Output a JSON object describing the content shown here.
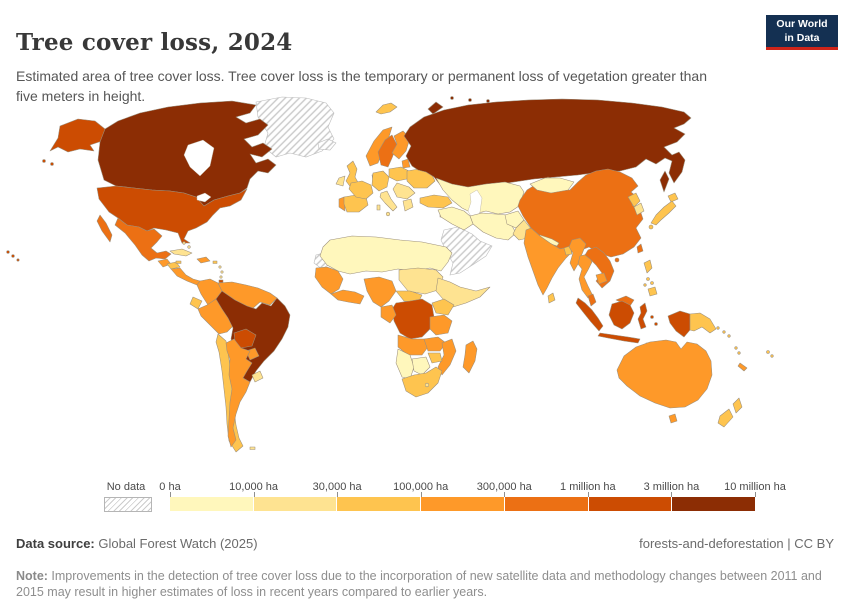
{
  "header": {
    "title": "Tree cover loss, 2024",
    "subtitle": "Estimated area of tree cover loss. Tree cover loss is the temporary or permanent loss of vegetation greater than five meters in height.",
    "logo_line1": "Our World",
    "logo_line2": "in Data",
    "logo_bg": "#143052",
    "logo_accent": "#CF2419"
  },
  "legend": {
    "nodata_label": "No data",
    "boundary_labels": [
      "0 ha",
      "10,000 ha",
      "30,000 ha",
      "100,000 ha",
      "300,000 ha",
      "1 million ha",
      "3 million ha",
      "10 million ha"
    ],
    "bin_colors": [
      "#FFF7BC",
      "#FEE391",
      "#FEC44F",
      "#FE9929",
      "#EC7014",
      "#CC4C02",
      "#8C2D04"
    ]
  },
  "footer": {
    "source_label": "Data source:",
    "source_value": " Global Forest Watch (2025)",
    "attribution": "forests-and-deforestation | CC BY",
    "note_label": "Note:",
    "note_text": " Improvements in the detection of tree cover loss due to the incorporation of new satellite data and methodology changes between 2011 and 2015 may result in higher estimates of loss in recent years compared to earlier years."
  },
  "chart_data": {
    "type": "choropleth_map",
    "title": "Tree cover loss, 2024",
    "unit": "ha of tree cover loss",
    "legend_bin_ranges": [
      "0–10,000 ha",
      "10,000–30,000 ha",
      "30,000–100,000 ha",
      "100,000–300,000 ha",
      "300,000–1 million ha",
      "1–3 million ha",
      "3–10 million ha"
    ],
    "nodata_bin": 0,
    "country_bins": {
      "canada": 7,
      "usa": 6,
      "greenland": 0,
      "iceland": 0,
      "mexico": 5,
      "guatemala": 4,
      "honduras": 3,
      "nicaragua_panama": 4,
      "cuba": 2,
      "hispaniola": 4,
      "jamaica": 3,
      "puertorico": 3,
      "bahamas": 2,
      "antilles": 2,
      "trinidad": 6,
      "colombia": 4,
      "venezuela": 4,
      "ecuador": 3,
      "peru": 4,
      "brazil": 7,
      "bolivia": 6,
      "paraguay": 4,
      "uruguay": 2,
      "chile": 3,
      "argentina": 4,
      "falkland": 2,
      "norway": 4,
      "sweden": 5,
      "finland": 4,
      "svalbard": 3,
      "denmark": 2,
      "uk": 3,
      "ireland": 2,
      "portugal": 4,
      "spain": 3,
      "france": 3,
      "germany": 3,
      "italy": 2,
      "poland": 3,
      "baltics": 4,
      "belarus_ukraine": 3,
      "romania_balkans": 2,
      "greece": 2,
      "turkey": 3,
      "caucasus": 2,
      "cyprus": 2,
      "russia": 7,
      "kazakhstan": 1,
      "iran": 1,
      "iraq_levant": 1,
      "afghanistan": 1,
      "pakistan": 2,
      "china": 5,
      "mongolia": 1,
      "nepal": 1,
      "india": 4,
      "srilanka": 3,
      "bangladesh": 3,
      "myanmar": 4,
      "thailand": 4,
      "laos_vietnam": 5,
      "cambodia": 4,
      "malaysia": 5,
      "korea_n": 3,
      "korea_s": 2,
      "japan": 3,
      "taiwan": 5,
      "philippines": 3,
      "indonesia": 6,
      "png": 3,
      "timor": 3,
      "australia": 4,
      "nz": 3,
      "newcaledonia": 4,
      "fiji": 3,
      "solomons": 3,
      "vanuatu": 3,
      "north_africa": 1,
      "w_sahara": 0,
      "senegal_guinea": 4,
      "ivory_ghana": 4,
      "nigeria": 4,
      "sudan": 2,
      "horn": 2,
      "car": 3,
      "drc": 6,
      "congo_gabon": 4,
      "uganda_kenya": 3,
      "tanzania": 4,
      "angola": 4,
      "zambia": 4,
      "mozambique": 4,
      "zimbabwe": 3,
      "namibia": 1,
      "botswana": 1,
      "south_africa": 3,
      "lesotho": 2,
      "madagascar": 4,
      "arabia": 0
    }
  }
}
